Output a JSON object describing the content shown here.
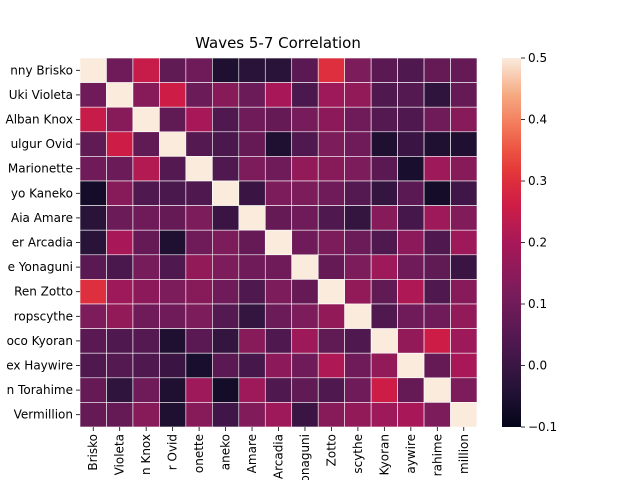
{
  "chart_data": {
    "type": "heatmap",
    "title": "Waves 5-7 Correlation",
    "row_labels": [
      "Jenny Brisko",
      "Yuki Violeta",
      "Alban Knox",
      "Fulgur Ovid",
      "Marionette",
      "Kyo Kaneko",
      "Aia Amare",
      "Ver Arcadia",
      "Ike Yonaguni",
      "Ren Zotto",
      "Doppio Dropscythe",
      "Rosco Kyoran",
      "Vox Haywire",
      "Shu Torahime",
      "Vermillion"
    ],
    "col_labels": [
      "Brisko",
      "Violeta",
      "n Knox",
      "r Ovid",
      "onette",
      "aneko",
      "Amare",
      "Arcadia",
      "onaguni",
      "Zotto",
      "scythe",
      "Kyoran",
      "aywire",
      "rahime",
      "million"
    ],
    "row_labels_display": [
      "nny Brisko",
      "Uki Violeta",
      "Alban Knox",
      "ulgur Ovid",
      "Marionette",
      "yo Kaneko",
      "Aia Amare",
      "er Arcadia",
      "e Yonaguni",
      "Ren Zotto",
      "ropscythe",
      "oco Kyoran",
      "ex Haywire",
      "n Torahime",
      "Vermillion"
    ],
    "matrix": [
      [
        0.5,
        0.1,
        0.25,
        0.07,
        0.1,
        -0.05,
        -0.03,
        -0.03,
        0.06,
        0.3,
        0.12,
        0.06,
        0.04,
        0.08,
        0.08
      ],
      [
        0.1,
        0.5,
        0.14,
        0.26,
        0.09,
        0.14,
        0.09,
        0.2,
        0.03,
        0.18,
        0.16,
        0.04,
        0.05,
        -0.02,
        0.08
      ],
      [
        0.25,
        0.14,
        0.5,
        0.07,
        0.2,
        0.04,
        0.1,
        0.08,
        0.11,
        0.15,
        0.1,
        0.05,
        0.04,
        0.1,
        0.14
      ],
      [
        0.07,
        0.26,
        0.07,
        0.5,
        0.05,
        0.03,
        0.08,
        -0.05,
        0.04,
        0.12,
        0.1,
        -0.05,
        0.0,
        -0.05,
        -0.05
      ],
      [
        0.1,
        0.09,
        0.22,
        0.05,
        0.5,
        0.04,
        0.12,
        0.1,
        0.16,
        0.14,
        0.12,
        0.06,
        -0.06,
        0.18,
        0.14
      ],
      [
        -0.07,
        0.14,
        0.04,
        0.03,
        0.04,
        0.5,
        0.0,
        0.12,
        0.12,
        0.1,
        0.05,
        -0.01,
        0.06,
        -0.07,
        0.01
      ],
      [
        -0.03,
        0.09,
        0.1,
        0.08,
        0.12,
        0.0,
        0.5,
        0.08,
        0.1,
        0.04,
        -0.01,
        0.14,
        0.02,
        0.18,
        0.13
      ],
      [
        -0.03,
        0.2,
        0.08,
        -0.05,
        0.1,
        0.12,
        0.08,
        0.5,
        0.1,
        0.12,
        0.09,
        0.04,
        0.15,
        0.04,
        0.18
      ],
      [
        0.06,
        0.03,
        0.11,
        0.04,
        0.16,
        0.12,
        0.1,
        0.1,
        0.5,
        0.08,
        0.12,
        0.18,
        0.1,
        0.07,
        0.0
      ],
      [
        0.3,
        0.18,
        0.15,
        0.12,
        0.14,
        0.1,
        0.04,
        0.12,
        0.08,
        0.5,
        0.16,
        0.07,
        0.21,
        0.04,
        0.14
      ],
      [
        0.12,
        0.16,
        0.1,
        0.1,
        0.12,
        0.05,
        -0.01,
        0.09,
        0.12,
        0.16,
        0.5,
        0.04,
        0.1,
        0.1,
        0.16
      ],
      [
        0.06,
        0.04,
        0.05,
        -0.05,
        0.06,
        -0.01,
        0.14,
        0.04,
        0.18,
        0.07,
        0.04,
        0.5,
        0.16,
        0.26,
        0.18
      ],
      [
        0.04,
        0.05,
        0.04,
        0.0,
        -0.06,
        0.06,
        0.02,
        0.15,
        0.1,
        0.21,
        0.1,
        0.16,
        0.5,
        0.08,
        0.2
      ],
      [
        0.08,
        -0.02,
        0.1,
        -0.05,
        0.18,
        -0.07,
        0.18,
        0.04,
        0.07,
        0.04,
        0.1,
        0.26,
        0.08,
        0.5,
        0.12
      ],
      [
        0.08,
        0.08,
        0.14,
        -0.05,
        0.14,
        0.01,
        0.13,
        0.18,
        0.0,
        0.14,
        0.16,
        0.18,
        0.2,
        0.12,
        0.5
      ]
    ],
    "vmin": -0.1,
    "vmax": 0.5,
    "colorbar_ticks": [
      "−0.1",
      "0.0",
      "0.1",
      "0.2",
      "0.3",
      "0.4",
      "0.5"
    ],
    "colormap": "rocket",
    "grid": false
  }
}
